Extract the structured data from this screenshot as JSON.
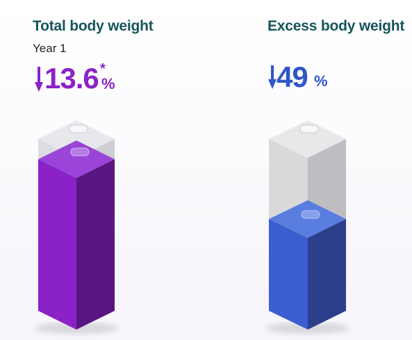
{
  "panels": [
    {
      "title": "Total body weight",
      "subtitle": "Year 1",
      "value": "13.6",
      "footnote_mark": "*",
      "unit": "%"
    },
    {
      "title": "Excess body weight",
      "value": "49",
      "unit": "%"
    }
  ]
}
